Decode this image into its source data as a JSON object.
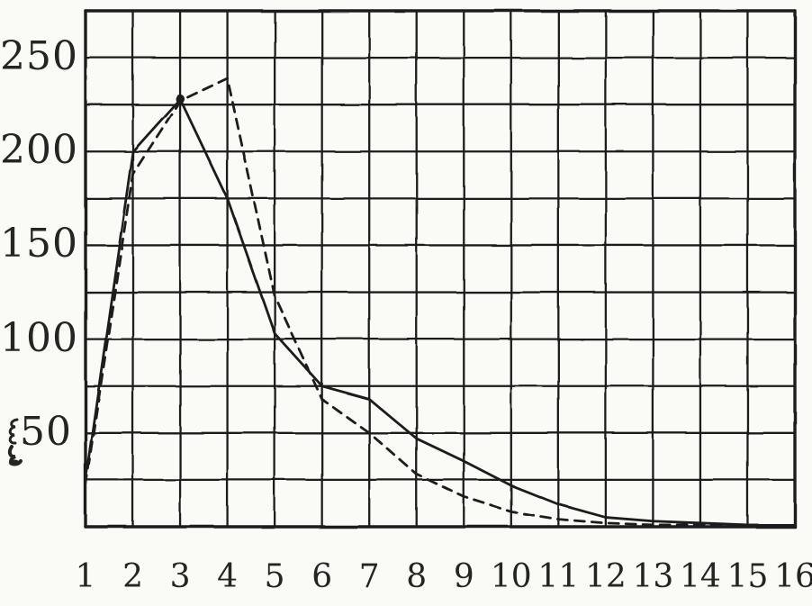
{
  "figure": {
    "kind": "scanned printed statistical diagram, no title or caption visible",
    "paper_color": "#fafaf7",
    "ink_color": "#1d1d1b",
    "artifact_note": "small illegible ink smudge printed just left of the 50 y-axis label"
  },
  "chart_data": {
    "type": "line",
    "title": "",
    "xlabel": "",
    "ylabel": "",
    "xlim": [
      1,
      16
    ],
    "ylim": [
      0,
      275
    ],
    "x_grid_step": 1,
    "y_grid_step": 25,
    "grid": "on",
    "legend": "none",
    "x_tick_labels": [
      "1",
      "2",
      "3",
      "4",
      "5",
      "6",
      "7",
      "8",
      "9",
      "10",
      "11",
      "12",
      "13",
      "14",
      "15",
      "16"
    ],
    "y_tick_labels": [
      "50",
      "100",
      "150",
      "200",
      "250"
    ],
    "y_tick_values": [
      50,
      100,
      150,
      200,
      250
    ],
    "x": [
      1,
      2,
      3,
      4,
      5,
      6,
      7,
      8,
      9,
      10,
      11,
      12,
      13,
      14,
      15,
      16
    ],
    "series": [
      {
        "name": "solid-curve",
        "style": "solid",
        "values": [
          25,
          200,
          228,
          175,
          103,
          75,
          68,
          47,
          35,
          22,
          12,
          5,
          3,
          2,
          1,
          1
        ]
      },
      {
        "name": "dashed-curve",
        "style": "dashed",
        "values": [
          22,
          188,
          227,
          239,
          123,
          68,
          50,
          28,
          16,
          8,
          4,
          2,
          1,
          1,
          1,
          0
        ]
      }
    ],
    "annotations": {
      "peak_dot": {
        "x": 3,
        "value": 228,
        "note": "dark knot where both curves meet at the solid curve's peak"
      }
    }
  }
}
